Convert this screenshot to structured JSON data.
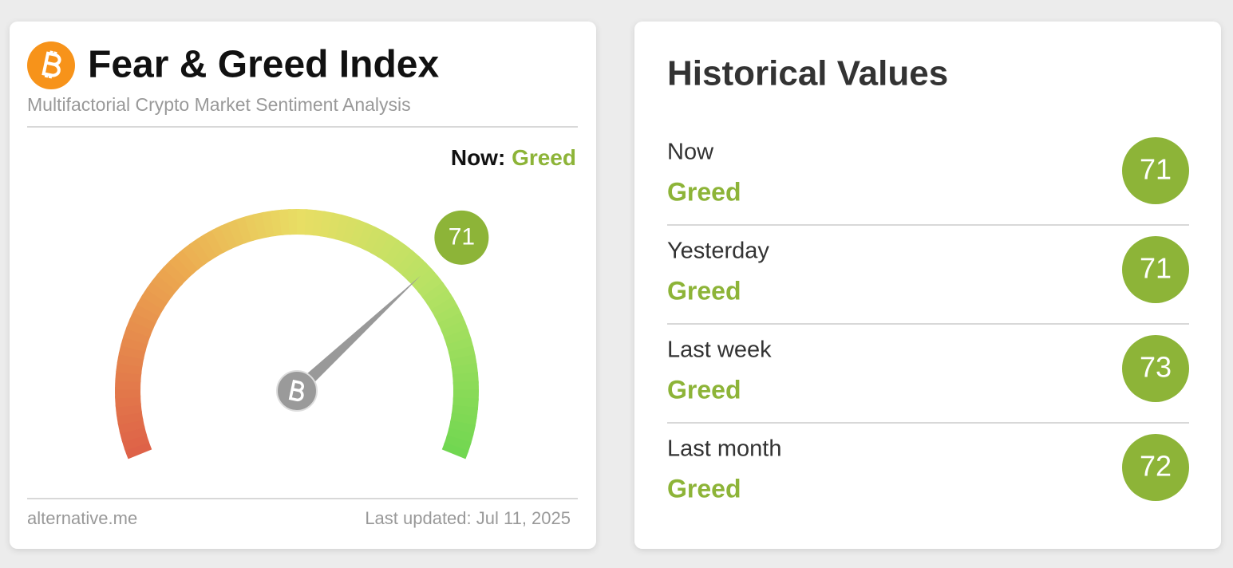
{
  "gauge_card": {
    "title": "Fear & Greed Index",
    "subtitle": "Multifactorial Crypto Market Sentiment Analysis",
    "now_label": "Now:",
    "now_class": "Greed",
    "value": 71,
    "range": [
      0,
      100
    ],
    "source": "alternative.me",
    "updated": "Last updated: Jul 11, 2025"
  },
  "history": {
    "title": "Historical Values",
    "rows": [
      {
        "period": "Now",
        "class": "Greed",
        "value": 71
      },
      {
        "period": "Yesterday",
        "class": "Greed",
        "value": 71
      },
      {
        "period": "Last week",
        "class": "Greed",
        "value": 73
      },
      {
        "period": "Last month",
        "class": "Greed",
        "value": 72
      }
    ]
  }
}
